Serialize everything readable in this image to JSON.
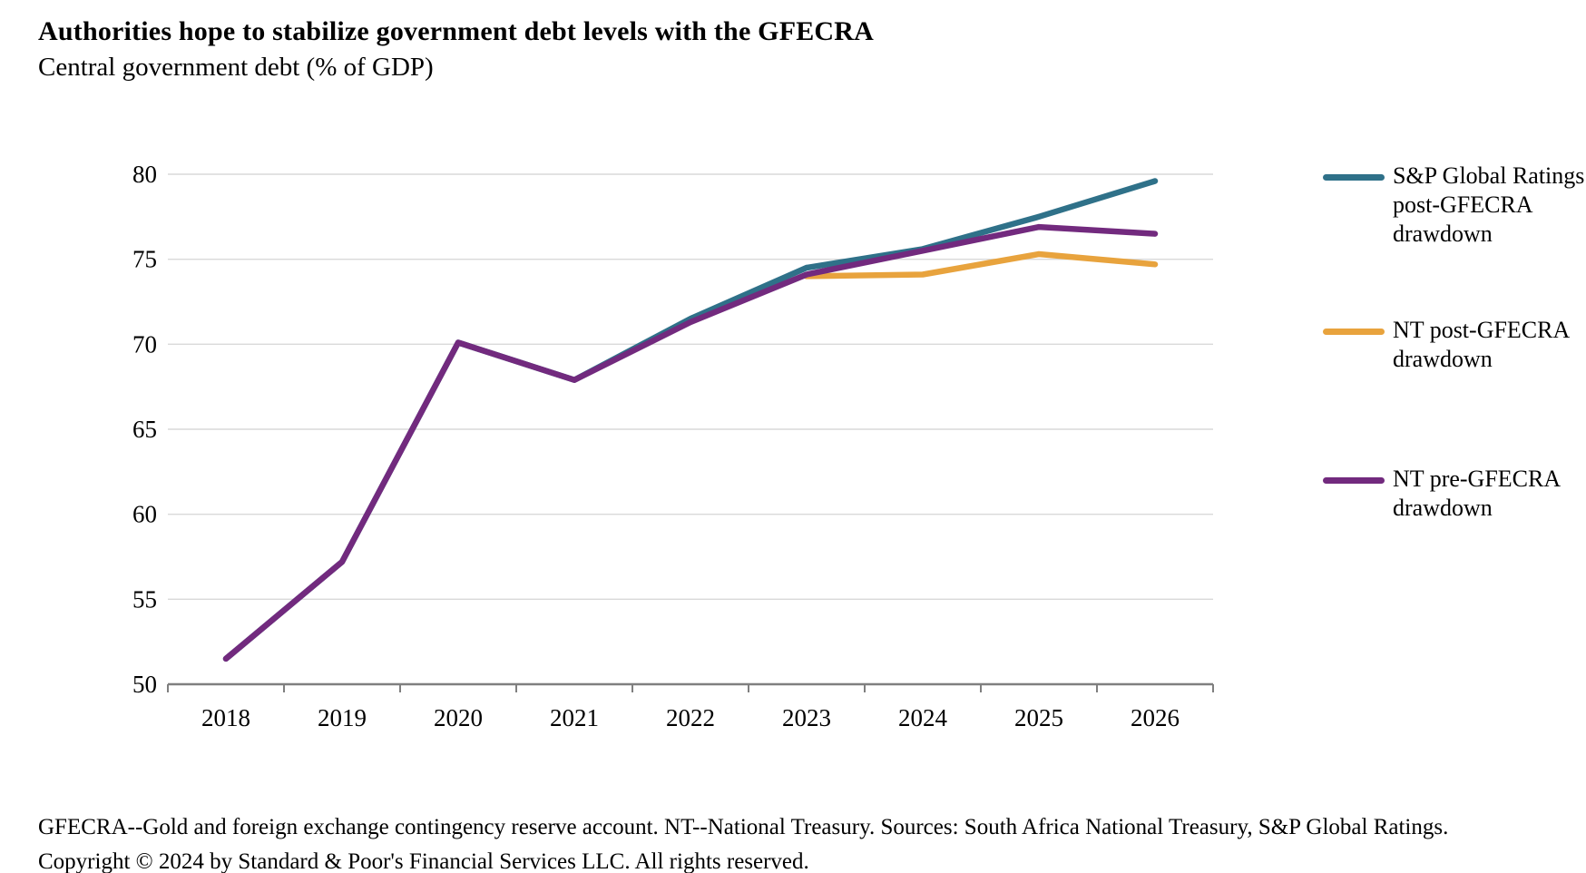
{
  "chart_data": {
    "type": "line",
    "title": "Authorities hope to stabilize government debt levels with the GFECRA",
    "subtitle": "Central government debt (% of GDP)",
    "x": [
      "2018",
      "2019",
      "2020",
      "2021",
      "2022",
      "2023",
      "2024",
      "2025",
      "2026"
    ],
    "ylim": [
      50,
      80
    ],
    "ytick_step": 5,
    "yticks": [
      50,
      55,
      60,
      65,
      70,
      75,
      80
    ],
    "grid": true,
    "legend_position": "right",
    "series": [
      {
        "name": "S&P Global Ratings post-GFECRA drawdown",
        "name_lines": [
          "S&P Global Ratings",
          "post-GFECRA",
          "drawdown"
        ],
        "color": "#2F7189",
        "values": [
          51.5,
          57.2,
          70.1,
          67.9,
          71.5,
          74.5,
          75.6,
          77.5,
          79.6
        ]
      },
      {
        "name": "NT post-GFECRA drawdown",
        "name_lines": [
          "NT post-GFECRA",
          "drawdown"
        ],
        "color": "#E8A33D",
        "values": [
          null,
          null,
          null,
          null,
          null,
          74.0,
          74.1,
          75.3,
          74.7
        ]
      },
      {
        "name": "NT pre-GFECRA drawdown",
        "name_lines": [
          "NT pre-GFECRA",
          "drawdown"
        ],
        "color": "#722A7E",
        "values": [
          51.5,
          57.2,
          70.1,
          67.9,
          71.3,
          74.1,
          75.5,
          76.9,
          76.5
        ]
      }
    ],
    "footnote": "GFECRA--Gold and foreign exchange contingency reserve account. NT--National Treasury. Sources: South Africa National Treasury, S&P Global Ratings.",
    "copyright": "Copyright © 2024 by Standard & Poor's Financial Services LLC. All rights reserved."
  },
  "colors": {
    "gridline": "#D9D9D9",
    "axis": "#7F7F7F",
    "text": "#000000",
    "background": "#FFFFFF"
  }
}
